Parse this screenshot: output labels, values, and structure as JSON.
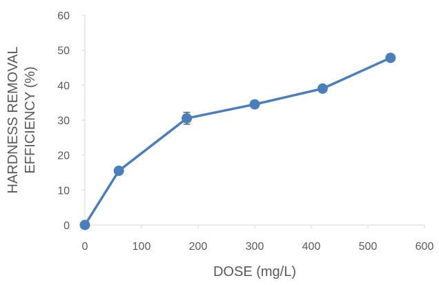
{
  "chart_data": {
    "type": "line",
    "title": "",
    "xlabel": "DOSE (mg/L)",
    "ylabel_lines": [
      "HARDNESS REMOVAL",
      "EFFICIENCY (%)"
    ],
    "xlim": [
      0,
      600
    ],
    "ylim": [
      0,
      60
    ],
    "x_ticks": [
      0,
      100,
      200,
      300,
      400,
      500,
      600
    ],
    "y_ticks": [
      0,
      10,
      20,
      30,
      40,
      50,
      60
    ],
    "grid": false,
    "series": [
      {
        "color": "#4a7ebb",
        "x": [
          0,
          60,
          180,
          300,
          420,
          540
        ],
        "y": [
          0,
          15.5,
          30.5,
          34.5,
          39,
          47.8
        ],
        "error": [
          0,
          0,
          1.7,
          0,
          0,
          0
        ]
      }
    ]
  }
}
